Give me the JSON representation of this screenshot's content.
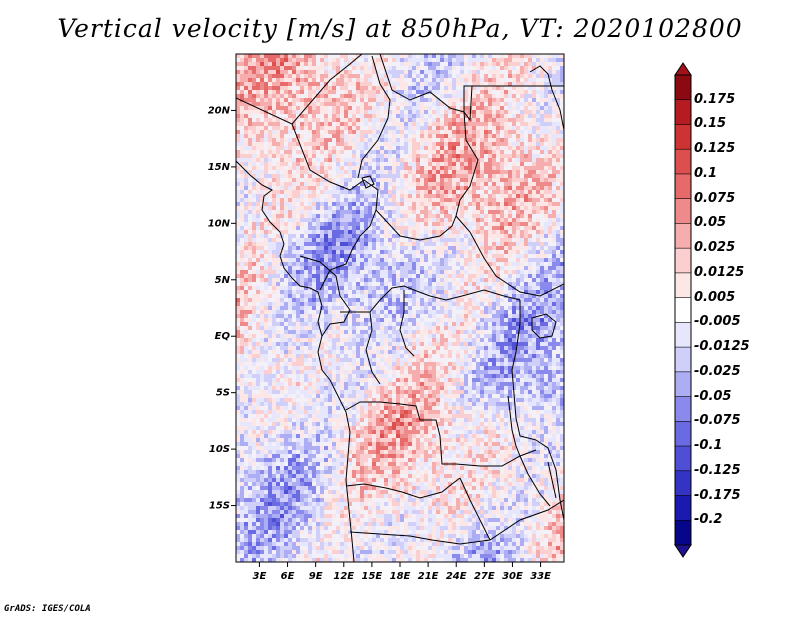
{
  "title": "Vertical velocity [m/s] at 850hPa, VT: 2020102800",
  "credit": "GrADS: IGES/COLA",
  "map": {
    "region": "Central Africa",
    "lon_range_deg": [
      0.5,
      35.5
    ],
    "lat_range_deg": [
      -20,
      25
    ],
    "lon_tick_labels": [
      "3E",
      "6E",
      "9E",
      "12E",
      "15E",
      "18E",
      "21E",
      "24E",
      "27E",
      "30E",
      "33E"
    ],
    "lat_tick_labels": [
      "20N",
      "15N",
      "10N",
      "5N",
      "EQ",
      "5S",
      "10S",
      "15S"
    ]
  },
  "colorbar": {
    "labels": [
      "0.175",
      "0.15",
      "0.125",
      "0.1",
      "0.075",
      "0.05",
      "0.025",
      "0.0125",
      "0.005",
      "-0.005",
      "-0.0125",
      "-0.025",
      "-0.05",
      "-0.075",
      "-0.1",
      "-0.125",
      "-0.175",
      "-0.2"
    ],
    "colors": [
      "#8b0a12",
      "#b51c22",
      "#cc3434",
      "#db4f4f",
      "#e66a6a",
      "#ef8a8a",
      "#f6adad",
      "#fbcfcf",
      "#fde6e6",
      "#ffffff",
      "#e6e6fc",
      "#cfcffa",
      "#adadf4",
      "#8a8aec",
      "#6a6ae2",
      "#4f4fd6",
      "#3333c4",
      "#1a1ab0",
      "#06068a"
    ],
    "over_color": "#a01218",
    "under_color": "#1e1290"
  }
}
